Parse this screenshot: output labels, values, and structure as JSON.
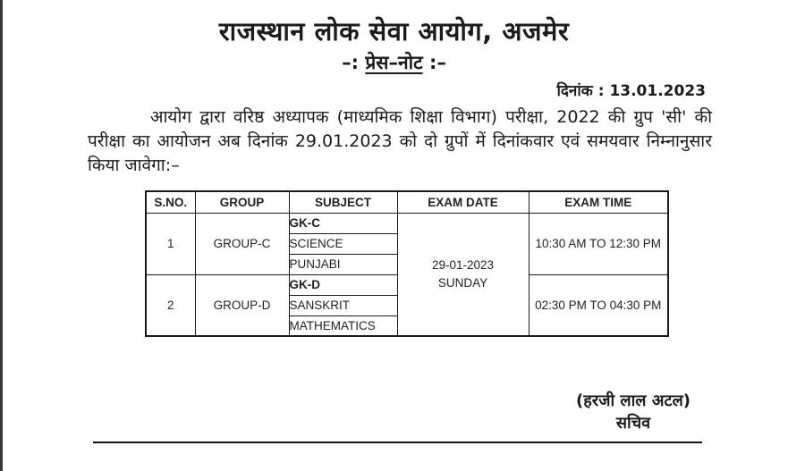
{
  "page": {
    "org_title": "राजस्थान लोक सेवा आयोग, अजमेर",
    "subtitle": {
      "prefix": "–:",
      "underlined": "प्रेस–नोट",
      "suffix": ":–"
    },
    "date_line": "दिनांक : 13.01.2023",
    "body_paragraph": "आयोग द्वारा वरिष्ठ अध्यापक (माध्यमिक शिक्षा विभाग) परीक्षा, 2022 की ग्रुप 'सी' की परीक्षा का आयोजन अब दिनांक 29.01.2023 को दो ग्रुपों में दिनांकवार एवं समयवार निम्नानुसार किया जावेगा:–",
    "signature": {
      "name": "(हरजी लाल अटल)",
      "designation": "सचिव"
    }
  },
  "schedule_table": {
    "headers": [
      "S.NO.",
      "GROUP",
      "SUBJECT",
      "EXAM DATE",
      "EXAM TIME"
    ],
    "exam_date": "29-01-2023",
    "exam_day": "SUNDAY",
    "groups": [
      {
        "sno": "1",
        "group": "GROUP-C",
        "subjects": [
          "GK-C",
          "SCIENCE",
          "PUNJABI"
        ],
        "exam_time": "10:30 AM TO 12:30 PM"
      },
      {
        "sno": "2",
        "group": "GROUP-D",
        "subjects": [
          "GK-D",
          "SANSKRIT",
          "MATHEMATICS"
        ],
        "exam_time": "02:30 PM TO 04:30 PM"
      }
    ]
  },
  "colors": {
    "text": "#1b1b1b",
    "table_border": "#1a1a1a",
    "page_background": "#ffffff",
    "left_edge_line": "#3a3a3a"
  }
}
